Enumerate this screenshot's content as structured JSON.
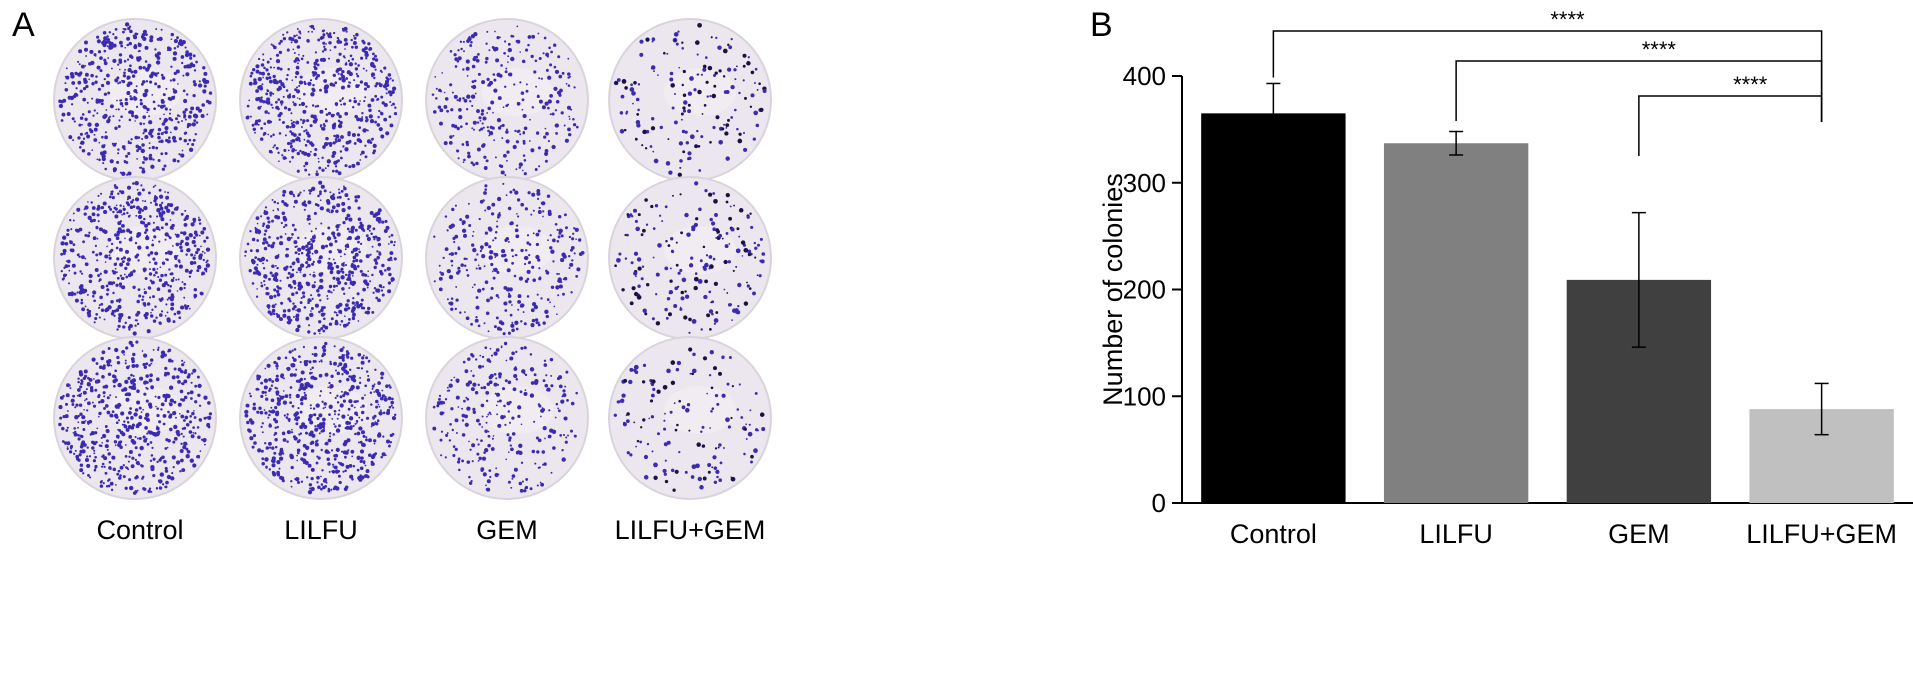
{
  "panel_a": {
    "letter": "A",
    "plate_labels": [
      "Control",
      "LILFU",
      "GEM",
      "LILFU+GEM"
    ],
    "colony_color": "#3a2bb0",
    "plate_color": "#ece6ee"
  },
  "panel_b": {
    "letter": "B"
  },
  "chart_data": {
    "type": "bar",
    "categories": [
      "Control",
      "LILFU",
      "GEM",
      "LILFU+GEM"
    ],
    "values": [
      365,
      337,
      209,
      88
    ],
    "errors": [
      28,
      11,
      63,
      24
    ],
    "colors": [
      "#000000",
      "#808080",
      "#404040",
      "#c0c0c0"
    ],
    "ylabel": "Number of colonies",
    "ylim": [
      0,
      400
    ],
    "yticks": [
      0,
      100,
      200,
      300,
      400
    ],
    "significance": [
      {
        "from": "Control",
        "to": "LILFU+GEM",
        "label": "****"
      },
      {
        "from": "LILFU",
        "to": "LILFU+GEM",
        "label": "****"
      },
      {
        "from": "GEM",
        "to": "LILFU+GEM",
        "label": "****"
      }
    ],
    "grid": false
  }
}
